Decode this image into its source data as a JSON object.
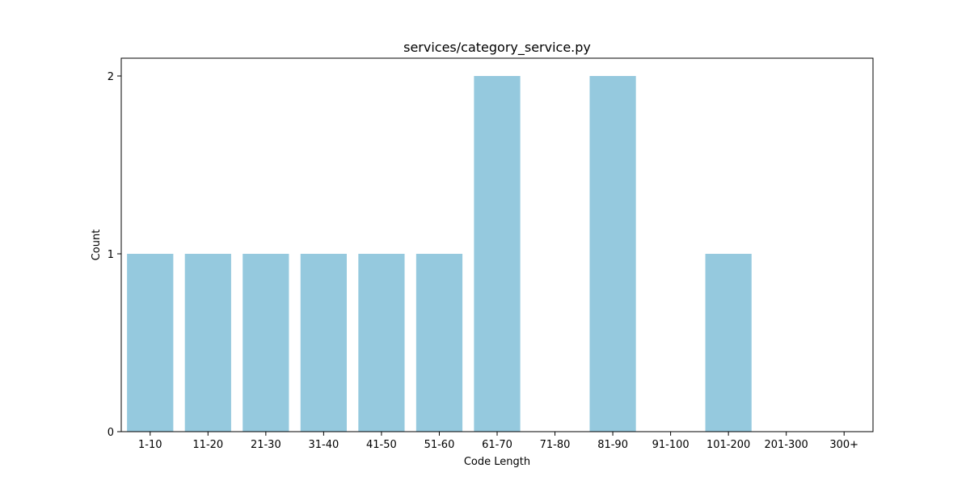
{
  "chart_data": {
    "type": "bar",
    "title": "services/category_service.py",
    "xlabel": "Code Length",
    "ylabel": "Count",
    "categories": [
      "1-10",
      "11-20",
      "21-30",
      "31-40",
      "41-50",
      "51-60",
      "61-70",
      "71-80",
      "81-90",
      "91-100",
      "101-200",
      "201-300",
      "300+"
    ],
    "values": [
      1,
      1,
      1,
      1,
      1,
      1,
      2,
      0,
      2,
      0,
      1,
      0,
      0
    ],
    "yticks": [
      0,
      1,
      2
    ],
    "ylim": [
      0,
      2.1
    ],
    "grid": false,
    "bar_color": "#95c9de",
    "axis_color": "#000000"
  }
}
